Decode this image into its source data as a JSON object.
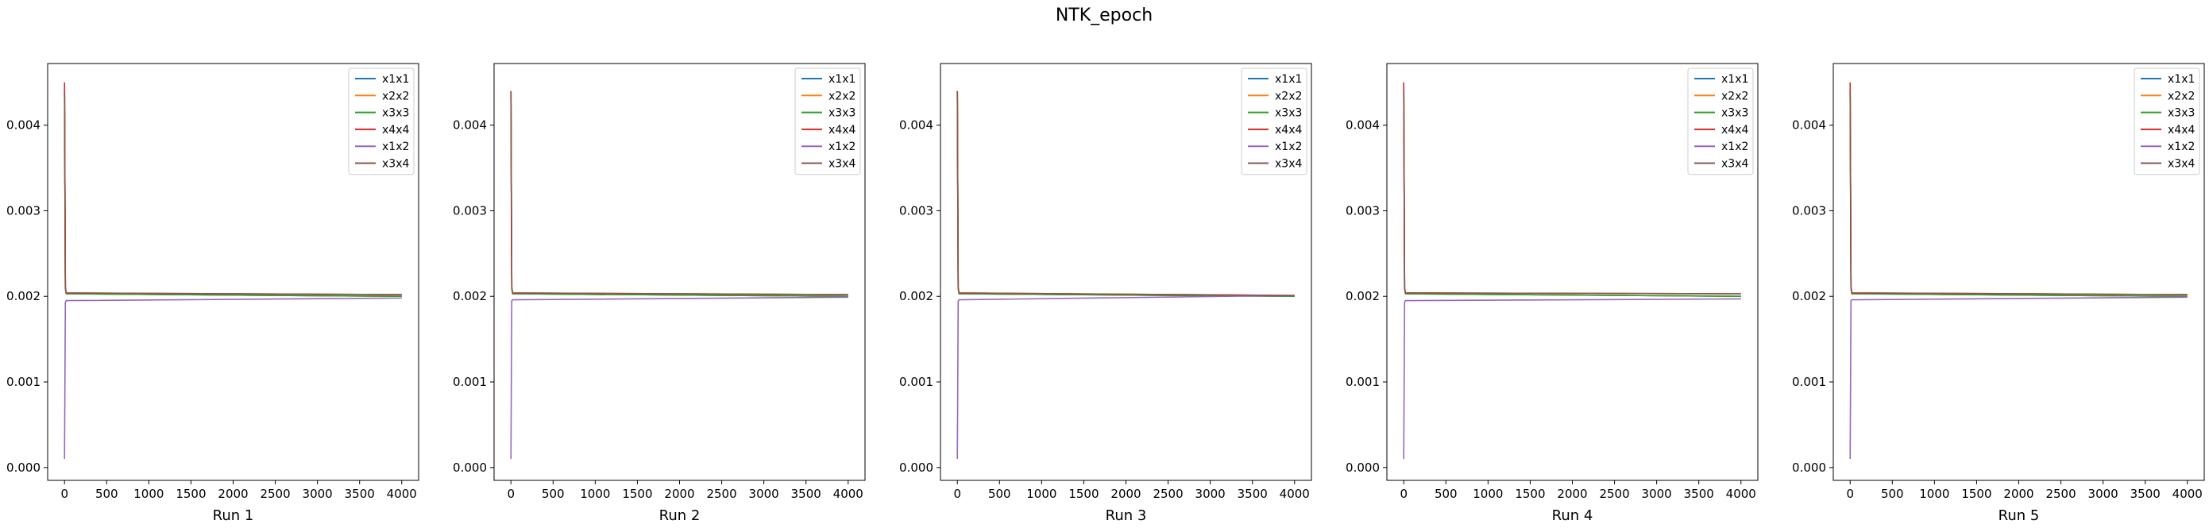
{
  "figure": {
    "title": "NTK_epoch"
  },
  "chart_data": [
    {
      "type": "line",
      "title": "",
      "xlabel": "Run 1",
      "ylabel": "",
      "xlim": [
        -200,
        4200
      ],
      "ylim": [
        -0.00015,
        0.00472
      ],
      "xticks": [
        0,
        500,
        1000,
        1500,
        2000,
        2500,
        3000,
        3500,
        4000
      ],
      "yticks": [
        0.0,
        0.001,
        0.002,
        0.003,
        0.004
      ],
      "ytick_labels": [
        "0.000",
        "0.001",
        "0.002",
        "0.003",
        "0.004"
      ],
      "grid": false,
      "legend": "top-right",
      "series": [
        {
          "name": "x1x1",
          "color": "#1f77b4",
          "x": [
            0,
            10,
            20,
            4000
          ],
          "y": [
            0.0044,
            0.0021,
            0.00203,
            0.002
          ]
        },
        {
          "name": "x2x2",
          "color": "#ff7f0e",
          "x": [
            0,
            10,
            20,
            4000
          ],
          "y": [
            0.0044,
            0.0021,
            0.00203,
            0.002
          ]
        },
        {
          "name": "x3x3",
          "color": "#2ca02c",
          "x": [
            0,
            10,
            20,
            4000
          ],
          "y": [
            0.0044,
            0.0021,
            0.00203,
            0.002
          ]
        },
        {
          "name": "x4x4",
          "color": "#d62728",
          "x": [
            0,
            10,
            20,
            4000
          ],
          "y": [
            0.0045,
            0.0021,
            0.00204,
            0.00202
          ]
        },
        {
          "name": "x1x2",
          "color": "#9467bd",
          "x": [
            0,
            10,
            20,
            4000
          ],
          "y": [
            0.0001,
            0.00193,
            0.00195,
            0.00198
          ]
        },
        {
          "name": "x3x4",
          "color": "#8c564b",
          "x": [
            0,
            10,
            20,
            4000
          ],
          "y": [
            0.0044,
            0.0021,
            0.00204,
            0.00202
          ]
        }
      ]
    },
    {
      "type": "line",
      "title": "",
      "xlabel": "Run 2",
      "ylabel": "",
      "xlim": [
        -200,
        4200
      ],
      "ylim": [
        -0.00015,
        0.00472
      ],
      "xticks": [
        0,
        500,
        1000,
        1500,
        2000,
        2500,
        3000,
        3500,
        4000
      ],
      "yticks": [
        0.0,
        0.001,
        0.002,
        0.003,
        0.004
      ],
      "ytick_labels": [
        "0.000",
        "0.001",
        "0.002",
        "0.003",
        "0.004"
      ],
      "grid": false,
      "legend": "top-right",
      "series": [
        {
          "name": "x1x1",
          "color": "#1f77b4",
          "x": [
            0,
            10,
            20,
            4000
          ],
          "y": [
            0.0044,
            0.0021,
            0.00203,
            0.002
          ]
        },
        {
          "name": "x2x2",
          "color": "#ff7f0e",
          "x": [
            0,
            10,
            20,
            4000
          ],
          "y": [
            0.0044,
            0.0021,
            0.00203,
            0.002
          ]
        },
        {
          "name": "x3x3",
          "color": "#2ca02c",
          "x": [
            0,
            10,
            20,
            4000
          ],
          "y": [
            0.0044,
            0.0021,
            0.00203,
            0.002
          ]
        },
        {
          "name": "x4x4",
          "color": "#d62728",
          "x": [
            0,
            10,
            20,
            4000
          ],
          "y": [
            0.0044,
            0.0021,
            0.00204,
            0.00202
          ]
        },
        {
          "name": "x1x2",
          "color": "#9467bd",
          "x": [
            0,
            10,
            20,
            4000
          ],
          "y": [
            0.0001,
            0.00195,
            0.00196,
            0.00199
          ]
        },
        {
          "name": "x3x4",
          "color": "#8c564b",
          "x": [
            0,
            10,
            20,
            4000
          ],
          "y": [
            0.0044,
            0.0021,
            0.00204,
            0.00202
          ]
        }
      ]
    },
    {
      "type": "line",
      "title": "",
      "xlabel": "Run 3",
      "ylabel": "",
      "xlim": [
        -200,
        4200
      ],
      "ylim": [
        -0.00015,
        0.00472
      ],
      "xticks": [
        0,
        500,
        1000,
        1500,
        2000,
        2500,
        3000,
        3500,
        4000
      ],
      "yticks": [
        0.0,
        0.001,
        0.002,
        0.003,
        0.004
      ],
      "ytick_labels": [
        "0.000",
        "0.001",
        "0.002",
        "0.003",
        "0.004"
      ],
      "grid": false,
      "legend": "top-right",
      "series": [
        {
          "name": "x1x1",
          "color": "#1f77b4",
          "x": [
            0,
            10,
            20,
            4000
          ],
          "y": [
            0.0044,
            0.0021,
            0.00203,
            0.002
          ]
        },
        {
          "name": "x2x2",
          "color": "#ff7f0e",
          "x": [
            0,
            10,
            20,
            4000
          ],
          "y": [
            0.0044,
            0.0021,
            0.00203,
            0.002
          ]
        },
        {
          "name": "x3x3",
          "color": "#2ca02c",
          "x": [
            0,
            10,
            20,
            4000
          ],
          "y": [
            0.0044,
            0.0021,
            0.00203,
            0.002
          ]
        },
        {
          "name": "x4x4",
          "color": "#d62728",
          "x": [
            0,
            10,
            20,
            4000
          ],
          "y": [
            0.0044,
            0.0021,
            0.00204,
            0.00201
          ]
        },
        {
          "name": "x1x2",
          "color": "#9467bd",
          "x": [
            0,
            10,
            20,
            4000
          ],
          "y": [
            0.0001,
            0.00194,
            0.00196,
            0.00201
          ]
        },
        {
          "name": "x3x4",
          "color": "#8c564b",
          "x": [
            0,
            10,
            20,
            4000
          ],
          "y": [
            0.0044,
            0.0021,
            0.00204,
            0.00201
          ]
        }
      ]
    },
    {
      "type": "line",
      "title": "",
      "xlabel": "Run 4",
      "ylabel": "",
      "xlim": [
        -200,
        4200
      ],
      "ylim": [
        -0.00015,
        0.00472
      ],
      "xticks": [
        0,
        500,
        1000,
        1500,
        2000,
        2500,
        3000,
        3500,
        4000
      ],
      "yticks": [
        0.0,
        0.001,
        0.002,
        0.003,
        0.004
      ],
      "ytick_labels": [
        "0.000",
        "0.001",
        "0.002",
        "0.003",
        "0.004"
      ],
      "grid": false,
      "legend": "top-right",
      "series": [
        {
          "name": "x1x1",
          "color": "#1f77b4",
          "x": [
            0,
            10,
            20,
            4000
          ],
          "y": [
            0.0044,
            0.0021,
            0.00203,
            0.002
          ]
        },
        {
          "name": "x2x2",
          "color": "#ff7f0e",
          "x": [
            0,
            10,
            20,
            4000
          ],
          "y": [
            0.0044,
            0.0021,
            0.00203,
            0.002
          ]
        },
        {
          "name": "x3x3",
          "color": "#2ca02c",
          "x": [
            0,
            10,
            20,
            4000
          ],
          "y": [
            0.0044,
            0.0021,
            0.00203,
            0.002
          ]
        },
        {
          "name": "x4x4",
          "color": "#d62728",
          "x": [
            0,
            10,
            20,
            4000
          ],
          "y": [
            0.0045,
            0.0021,
            0.00204,
            0.00203
          ]
        },
        {
          "name": "x1x2",
          "color": "#9467bd",
          "x": [
            0,
            10,
            20,
            4000
          ],
          "y": [
            0.0001,
            0.00193,
            0.00195,
            0.00197
          ]
        },
        {
          "name": "x3x4",
          "color": "#8c564b",
          "x": [
            0,
            10,
            20,
            4000
          ],
          "y": [
            0.0044,
            0.0021,
            0.00204,
            0.00203
          ]
        }
      ]
    },
    {
      "type": "line",
      "title": "",
      "xlabel": "Run 5",
      "ylabel": "",
      "xlim": [
        -200,
        4200
      ],
      "ylim": [
        -0.00015,
        0.00472
      ],
      "xticks": [
        0,
        500,
        1000,
        1500,
        2000,
        2500,
        3000,
        3500,
        4000
      ],
      "yticks": [
        0.0,
        0.001,
        0.002,
        0.003,
        0.004
      ],
      "ytick_labels": [
        "0.000",
        "0.001",
        "0.002",
        "0.003",
        "0.004"
      ],
      "grid": false,
      "legend": "top-right",
      "series": [
        {
          "name": "x1x1",
          "color": "#1f77b4",
          "x": [
            0,
            10,
            20,
            4000
          ],
          "y": [
            0.0044,
            0.0021,
            0.00203,
            0.002
          ]
        },
        {
          "name": "x2x2",
          "color": "#ff7f0e",
          "x": [
            0,
            10,
            20,
            4000
          ],
          "y": [
            0.0044,
            0.0021,
            0.00203,
            0.002
          ]
        },
        {
          "name": "x3x3",
          "color": "#2ca02c",
          "x": [
            0,
            10,
            20,
            4000
          ],
          "y": [
            0.0044,
            0.0021,
            0.00203,
            0.002
          ]
        },
        {
          "name": "x4x4",
          "color": "#d62728",
          "x": [
            0,
            10,
            20,
            4000
          ],
          "y": [
            0.0045,
            0.0021,
            0.00204,
            0.00202
          ]
        },
        {
          "name": "x1x2",
          "color": "#9467bd",
          "x": [
            0,
            10,
            20,
            4000
          ],
          "y": [
            0.0001,
            0.00195,
            0.00196,
            0.00199
          ]
        },
        {
          "name": "x3x4",
          "color": "#8c564b",
          "x": [
            0,
            10,
            20,
            4000
          ],
          "y": [
            0.0044,
            0.0021,
            0.00204,
            0.00202
          ]
        }
      ]
    }
  ]
}
